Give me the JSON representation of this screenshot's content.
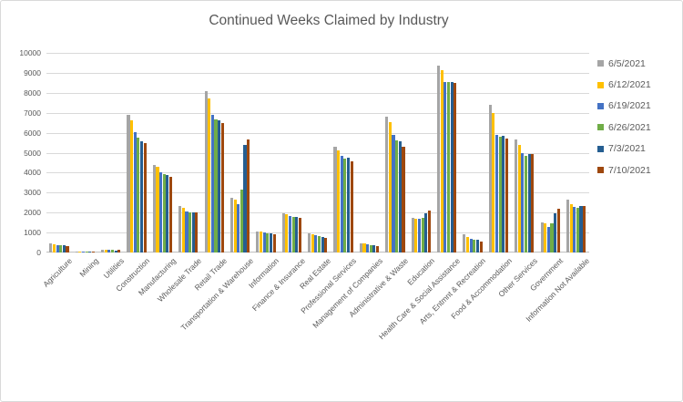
{
  "chart_data": {
    "type": "bar",
    "title": "Continued Weeks Claimed by Industry",
    "categories": [
      "Agriculture",
      "Mining",
      "Utilities",
      "Construction",
      "Manufacturing",
      "Wholesale Trade",
      "Retail Trade",
      "Transportation & Warehouse",
      "Information",
      "Finance & Insurance",
      "Real Estate",
      "Professional Services",
      "Management of Companies",
      "Administrative & Waste",
      "Education",
      "Health Care & Social Assistance",
      "Arts, Entmnt & Recreation",
      "Food & Accommodation",
      "Other Services",
      "Government",
      "Information Not Available"
    ],
    "series": [
      {
        "name": "6/5/2021",
        "color": "#A5A5A5",
        "values": [
          450,
          30,
          130,
          6900,
          4400,
          2350,
          8100,
          2750,
          1050,
          1950,
          950,
          5300,
          450,
          6800,
          1750,
          9350,
          900,
          7400,
          5650,
          1500,
          2650
        ]
      },
      {
        "name": "6/12/2021",
        "color": "#FFC000",
        "values": [
          400,
          25,
          150,
          6600,
          4300,
          2250,
          7700,
          2650,
          1050,
          1900,
          900,
          5100,
          450,
          6550,
          1700,
          9150,
          775,
          7000,
          5400,
          1450,
          2400
        ]
      },
      {
        "name": "6/19/2021",
        "color": "#4472C4",
        "values": [
          375,
          25,
          120,
          6050,
          4000,
          2050,
          6900,
          2400,
          1000,
          1850,
          850,
          4850,
          400,
          5900,
          1700,
          8550,
          675,
          5900,
          5000,
          1300,
          2300
        ]
      },
      {
        "name": "6/26/2021",
        "color": "#70AD47",
        "values": [
          375,
          25,
          130,
          5750,
          3950,
          2000,
          6650,
          3150,
          950,
          1800,
          800,
          4700,
          350,
          5600,
          1750,
          8550,
          650,
          5800,
          4850,
          1450,
          2250
        ]
      },
      {
        "name": "7/3/2021",
        "color": "#255E91",
        "values": [
          375,
          25,
          110,
          5550,
          3900,
          2000,
          6600,
          5400,
          950,
          1800,
          775,
          4750,
          350,
          5550,
          1950,
          8550,
          625,
          5850,
          4950,
          1950,
          2350
        ]
      },
      {
        "name": "7/10/2021",
        "color": "#9E480E",
        "values": [
          300,
          25,
          130,
          5500,
          3800,
          2000,
          6500,
          5650,
          900,
          1750,
          750,
          4550,
          300,
          5300,
          2100,
          8500,
          550,
          5700,
          4950,
          2200,
          2350
        ]
      }
    ],
    "ylim": [
      0,
      10000
    ],
    "ytick_step": 1000,
    "grid": "horizontal",
    "legend_position": "right"
  },
  "colors": {
    "title_text": "#595959",
    "axis_text": "#595959",
    "gridline": "#D9D9D9",
    "frame_border": "#D9D9D9",
    "background": "#FFFFFF"
  }
}
